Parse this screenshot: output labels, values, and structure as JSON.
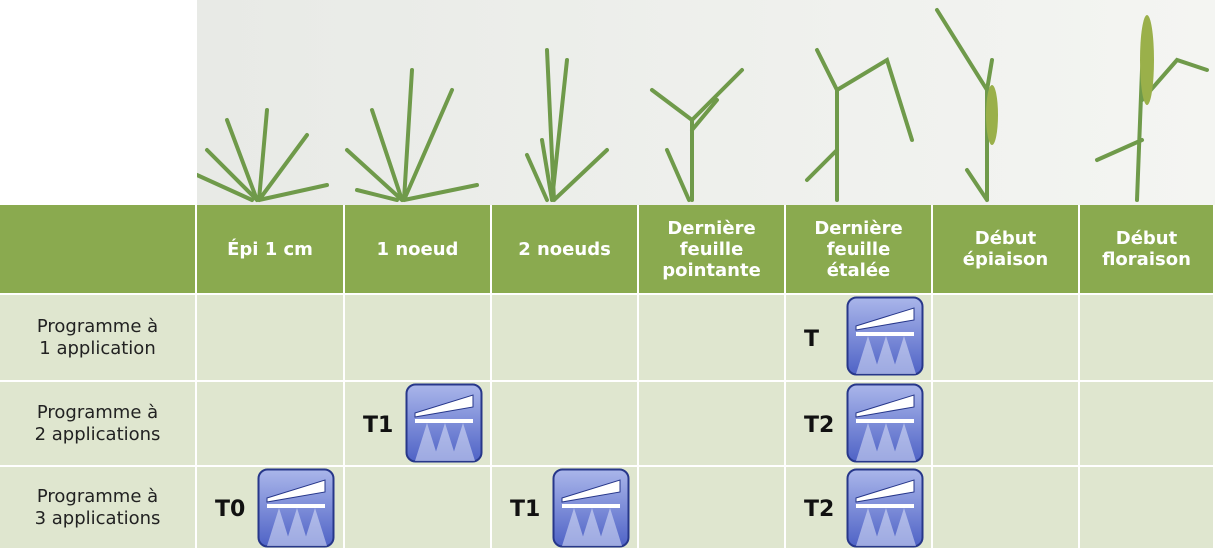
{
  "header": {
    "columns": [
      "Épi 1 cm",
      "1 noeud",
      "2 noeuds",
      "Dernière\nfeuille\npointante",
      "Dernière\nfeuille\nétalée",
      "Début\népiaison",
      "Début\nfloraison"
    ]
  },
  "rows": [
    {
      "label": "Programme à\n1 application",
      "cells": [
        null,
        null,
        null,
        null,
        "T",
        null,
        null
      ]
    },
    {
      "label": "Programme à\n2 applications",
      "cells": [
        null,
        "T1",
        null,
        null,
        "T2",
        null,
        null
      ]
    },
    {
      "label": "Programme à\n3 applications",
      "cells": [
        "T0",
        null,
        "T1",
        null,
        "T2",
        null,
        null
      ]
    }
  ]
}
